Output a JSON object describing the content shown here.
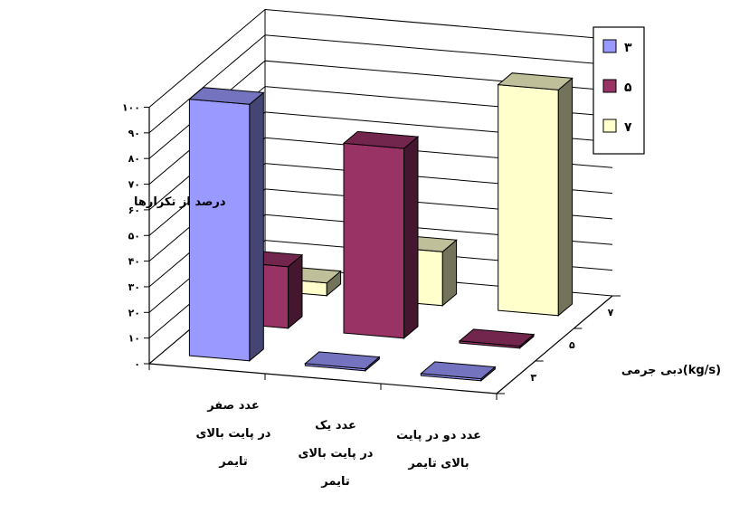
{
  "chart_data": {
    "type": "bar",
    "subtype": "3d-clustered-depth",
    "ylabel": "درصد از تکرارها",
    "zlabel": "دبی جرمی(kg/s)",
    "ylim": [
      0,
      100
    ],
    "y_ticks": [
      "۰",
      "۱۰",
      "۲۰",
      "۳۰",
      "۴۰",
      "۵۰",
      "۶۰",
      "۷۰",
      "۸۰",
      "۹۰",
      "۱۰۰"
    ],
    "categories": [
      [
        "عدد صفر",
        "در پایت  بالای",
        "تایمر"
      ],
      [
        "عدد یک",
        "در پایت بالای",
        "تایمر"
      ],
      [
        "عدد دو در پایت",
        "بالای تایمر"
      ]
    ],
    "series": [
      {
        "name": "۳",
        "color": "#9999ff",
        "values": [
          100,
          0,
          0
        ]
      },
      {
        "name": "۵",
        "color": "#993366",
        "values": [
          24,
          74,
          0
        ]
      },
      {
        "name": "۷",
        "color": "#ffffcc",
        "values": [
          5,
          21,
          88
        ]
      }
    ],
    "depth_ticks": [
      "۳",
      "۵",
      "۷"
    ],
    "grid": true,
    "legend_position": "top-right"
  }
}
